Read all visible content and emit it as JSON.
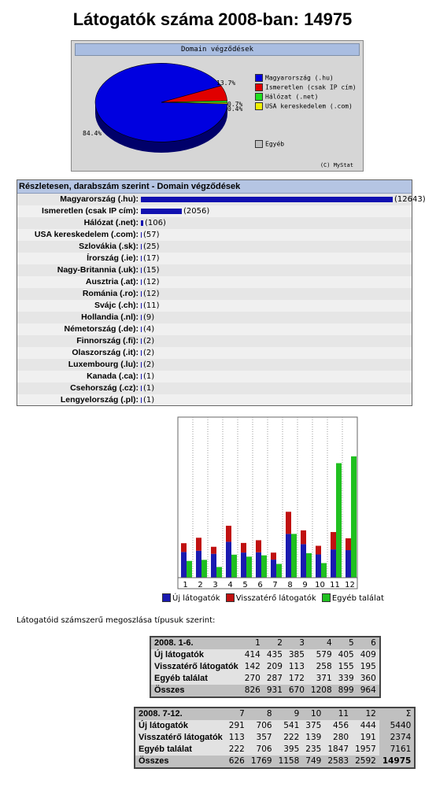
{
  "title": "Látogatók száma 2008-ban: 14975",
  "pie": {
    "header": "Domain végződések",
    "credit": "(C) MyStat",
    "slice_labels": [
      "84.4%",
      "13.7%",
      "0.7%",
      "0.4%"
    ],
    "legend": [
      {
        "label": "Magyarország (.hu)",
        "color": "#0000e0"
      },
      {
        "label": "Ismeretlen (csak IP cím)",
        "color": "#e00000"
      },
      {
        "label": "Hálózat (.net)",
        "color": "#20e020"
      },
      {
        "label": "USA kereskedelem (.com)",
        "color": "#f0f000"
      },
      {
        "label": "Egyéb",
        "color": "#c0c0c0"
      }
    ]
  },
  "detail": {
    "header": "Részletesen, darabszám szerint - Domain végződések",
    "rows": [
      {
        "label": "Magyarország (.hu):",
        "value": "(12643)",
        "n": 12643
      },
      {
        "label": "Ismeretlen (csak IP cím):",
        "value": "(2056)",
        "n": 2056
      },
      {
        "label": "Hálózat (.net):",
        "value": "(106)",
        "n": 106
      },
      {
        "label": "USA kereskedelem (.com):",
        "value": "(57)",
        "n": 57
      },
      {
        "label": "Szlovákia (.sk):",
        "value": "(25)",
        "n": 25
      },
      {
        "label": "Írország (.ie):",
        "value": "(17)",
        "n": 17
      },
      {
        "label": "Nagy-Britannia (.uk):",
        "value": "(15)",
        "n": 15
      },
      {
        "label": "Ausztria (.at):",
        "value": "(12)",
        "n": 12
      },
      {
        "label": "Románia (.ro):",
        "value": "(12)",
        "n": 12
      },
      {
        "label": "Svájc (.ch):",
        "value": "(11)",
        "n": 11
      },
      {
        "label": "Hollandia (.nl):",
        "value": "(9)",
        "n": 9
      },
      {
        "label": "Németország (.de):",
        "value": "(4)",
        "n": 4
      },
      {
        "label": "Finnország (.fi):",
        "value": "(2)",
        "n": 2
      },
      {
        "label": "Olaszország (.it):",
        "value": "(2)",
        "n": 2
      },
      {
        "label": "Luxembourg (.lu):",
        "value": "(2)",
        "n": 2
      },
      {
        "label": "Kanada (.ca):",
        "value": "(1)",
        "n": 1
      },
      {
        "label": "Csehország (.cz):",
        "value": "(1)",
        "n": 1
      },
      {
        "label": "Lengyelország (.pl):",
        "value": "(1)",
        "n": 1
      }
    ]
  },
  "chart_data": {
    "type": "bar",
    "categories": [
      "1",
      "2",
      "3",
      "4",
      "5",
      "6",
      "7",
      "8",
      "9",
      "10",
      "11",
      "12"
    ],
    "series": [
      {
        "name": "Új látogatók",
        "color": "#1a1ab0",
        "values": [
          414,
          435,
          385,
          579,
          405,
          409,
          291,
          706,
          541,
          375,
          456,
          444
        ]
      },
      {
        "name": "Visszatérő látogatók",
        "color": "#c01010",
        "values": [
          142,
          209,
          113,
          258,
          155,
          195,
          113,
          357,
          222,
          139,
          280,
          191
        ]
      },
      {
        "name": "Egyéb találat",
        "color": "#20c020",
        "values": [
          270,
          287,
          172,
          371,
          339,
          360,
          222,
          706,
          395,
          235,
          1847,
          1957
        ]
      }
    ],
    "stacking": "series 1 and 2 stacked; series 3 side by side",
    "ylim": [
      0,
      2590
    ]
  },
  "caption": "Látogatóid számszerű megoszlása típusuk szerint:",
  "tables": [
    {
      "period": "2008. 1-6.",
      "months": [
        "1",
        "2",
        "3",
        "4",
        "5",
        "6"
      ],
      "rows": [
        {
          "label": "Új látogatók",
          "values": [
            "414",
            "435",
            "385",
            "579",
            "405",
            "409"
          ]
        },
        {
          "label": "Visszatérő látogatók",
          "values": [
            "142",
            "209",
            "113",
            "258",
            "155",
            "195"
          ]
        },
        {
          "label": "Egyéb találat",
          "values": [
            "270",
            "287",
            "172",
            "371",
            "339",
            "360"
          ]
        },
        {
          "label": "Összes",
          "values": [
            "826",
            "931",
            "670",
            "1208",
            "899",
            "964"
          ]
        }
      ]
    },
    {
      "period": "2008. 7-12.",
      "months": [
        "7",
        "8",
        "9",
        "10",
        "11",
        "12"
      ],
      "sum_header": "Σ",
      "rows": [
        {
          "label": "Új látogatók",
          "values": [
            "291",
            "706",
            "541",
            "375",
            "456",
            "444"
          ],
          "sum": "5440"
        },
        {
          "label": "Visszatérő látogatók",
          "values": [
            "113",
            "357",
            "222",
            "139",
            "280",
            "191"
          ],
          "sum": "2374"
        },
        {
          "label": "Egyéb találat",
          "values": [
            "222",
            "706",
            "395",
            "235",
            "1847",
            "1957"
          ],
          "sum": "7161"
        },
        {
          "label": "Összes",
          "values": [
            "626",
            "1769",
            "1158",
            "749",
            "2583",
            "2592"
          ],
          "sum": "14975"
        }
      ]
    }
  ]
}
